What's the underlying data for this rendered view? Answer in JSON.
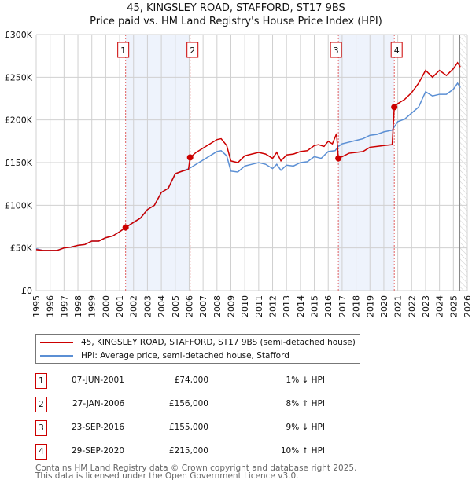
{
  "chart_data": {
    "type": "line",
    "title": "45, KINGSLEY ROAD, STAFFORD, ST17 9BS",
    "subtitle": "Price paid vs. HM Land Registry's House Price Index (HPI)",
    "xlim": [
      1995,
      2026
    ],
    "ylim": [
      0,
      300000
    ],
    "y_ticks": [
      {
        "v": 0,
        "label": "£0"
      },
      {
        "v": 50000,
        "label": "£50K"
      },
      {
        "v": 100000,
        "label": "£100K"
      },
      {
        "v": 150000,
        "label": "£150K"
      },
      {
        "v": 200000,
        "label": "£200K"
      },
      {
        "v": 250000,
        "label": "£250K"
      },
      {
        "v": 300000,
        "label": "£300K"
      }
    ],
    "x_ticks": [
      "1995",
      "1996",
      "1997",
      "1998",
      "1999",
      "2000",
      "2001",
      "2002",
      "2003",
      "2004",
      "2005",
      "2006",
      "2007",
      "2008",
      "2009",
      "2010",
      "2011",
      "2012",
      "2013",
      "2014",
      "2015",
      "2016",
      "2017",
      "2018",
      "2019",
      "2020",
      "2021",
      "2022",
      "2023",
      "2024",
      "2025",
      "2026"
    ],
    "grid": true,
    "series": [
      {
        "name": "45, KINGSLEY ROAD, STAFFORD, ST17 9BS (semi-detached house)",
        "color": "#cc0000",
        "x": [
          1995,
          1995.5,
          1996,
          1996.5,
          1997,
          1997.5,
          1998,
          1998.5,
          1999,
          1999.5,
          2000,
          2000.5,
          2001,
          2001.43,
          2002,
          2002.5,
          2003,
          2003.5,
          2004,
          2004.5,
          2005,
          2005.5,
          2005.95,
          2006.07,
          2006.5,
          2007,
          2007.5,
          2008,
          2008.3,
          2008.7,
          2009,
          2009.5,
          2010,
          2010.5,
          2011,
          2011.5,
          2012,
          2012.3,
          2012.6,
          2013,
          2013.5,
          2014,
          2014.5,
          2015,
          2015.3,
          2015.7,
          2016,
          2016.3,
          2016.6,
          2016.73,
          2017,
          2017.5,
          2018,
          2018.5,
          2019,
          2019.5,
          2020,
          2020.6,
          2020.75,
          2021,
          2021.5,
          2022,
          2022.5,
          2023,
          2023.5,
          2024,
          2024.5,
          2025,
          2025.3,
          2025.5
        ],
        "y": [
          48,
          47,
          47,
          47,
          50,
          51,
          53,
          54,
          58,
          58,
          62,
          64,
          69,
          74,
          80,
          85,
          95,
          100,
          115,
          120,
          137,
          140,
          142,
          156,
          162,
          167,
          172,
          177,
          178,
          170,
          152,
          150,
          158,
          160,
          162,
          160,
          155,
          162,
          152,
          159,
          160,
          163,
          164,
          170,
          171,
          169,
          175,
          172,
          184,
          155,
          157,
          161,
          162,
          163,
          168,
          169,
          170,
          171,
          215,
          219,
          224,
          232,
          243,
          258,
          250,
          258,
          252,
          260,
          267,
          262
        ]
      },
      {
        "name": "HPI: Average price, semi-detached house, Stafford",
        "color": "#5b8fd4",
        "x": [
          1995,
          1995.5,
          1996,
          1996.5,
          1997,
          1997.5,
          1998,
          1998.5,
          1999,
          1999.5,
          2000,
          2000.5,
          2001,
          2001.43,
          2002,
          2002.5,
          2003,
          2003.5,
          2004,
          2004.5,
          2005,
          2005.5,
          2006,
          2006.5,
          2007,
          2007.5,
          2008,
          2008.3,
          2008.7,
          2009,
          2009.5,
          2010,
          2010.5,
          2011,
          2011.5,
          2012,
          2012.3,
          2012.6,
          2013,
          2013.5,
          2014,
          2014.5,
          2015,
          2015.5,
          2016,
          2016.5,
          2016.73,
          2017,
          2017.5,
          2018,
          2018.5,
          2019,
          2019.5,
          2020,
          2020.6,
          2021,
          2021.5,
          2022,
          2022.5,
          2023,
          2023.5,
          2024,
          2024.5,
          2025,
          2025.3,
          2025.5
        ],
        "y": [
          49,
          47,
          47,
          47,
          50,
          51,
          53,
          54,
          58,
          58,
          62,
          64,
          69,
          74,
          80,
          85,
          95,
          100,
          115,
          120,
          137,
          140,
          143,
          148,
          153,
          158,
          163,
          164,
          158,
          140,
          139,
          146,
          148,
          150,
          148,
          143,
          148,
          141,
          147,
          146,
          150,
          151,
          157,
          155,
          163,
          164,
          169,
          172,
          174,
          176,
          178,
          182,
          183,
          186,
          188,
          198,
          201,
          208,
          215,
          233,
          228,
          230,
          230,
          236,
          243,
          238
        ]
      }
    ],
    "sales": [
      {
        "label": "1",
        "x": 2001.43,
        "y": 74000
      },
      {
        "label": "2",
        "x": 2006.07,
        "y": 156000
      },
      {
        "label": "3",
        "x": 2016.73,
        "y": 155000
      },
      {
        "label": "4",
        "x": 2020.75,
        "y": 215000
      }
    ],
    "shaded_ranges": [
      [
        2001.43,
        2006.07
      ],
      [
        2016.73,
        2020.75
      ]
    ],
    "forecast_from": 2025.45
  },
  "legend": [
    "45, KINGSLEY ROAD, STAFFORD, ST17 9BS (semi-detached house)",
    "HPI: Average price, semi-detached house, Stafford"
  ],
  "transactions": [
    {
      "num": "1",
      "date": "07-JUN-2001",
      "price": "£74,000",
      "hpi": "1% ↓ HPI"
    },
    {
      "num": "2",
      "date": "27-JAN-2006",
      "price": "£156,000",
      "hpi": "8% ↑ HPI"
    },
    {
      "num": "3",
      "date": "23-SEP-2016",
      "price": "£155,000",
      "hpi": "9% ↓ HPI"
    },
    {
      "num": "4",
      "date": "29-SEP-2020",
      "price": "£215,000",
      "hpi": "10% ↑ HPI"
    }
  ],
  "footer": [
    "Contains HM Land Registry data © Crown copyright and database right 2025.",
    "This data is licensed under the Open Government Licence v3.0."
  ]
}
